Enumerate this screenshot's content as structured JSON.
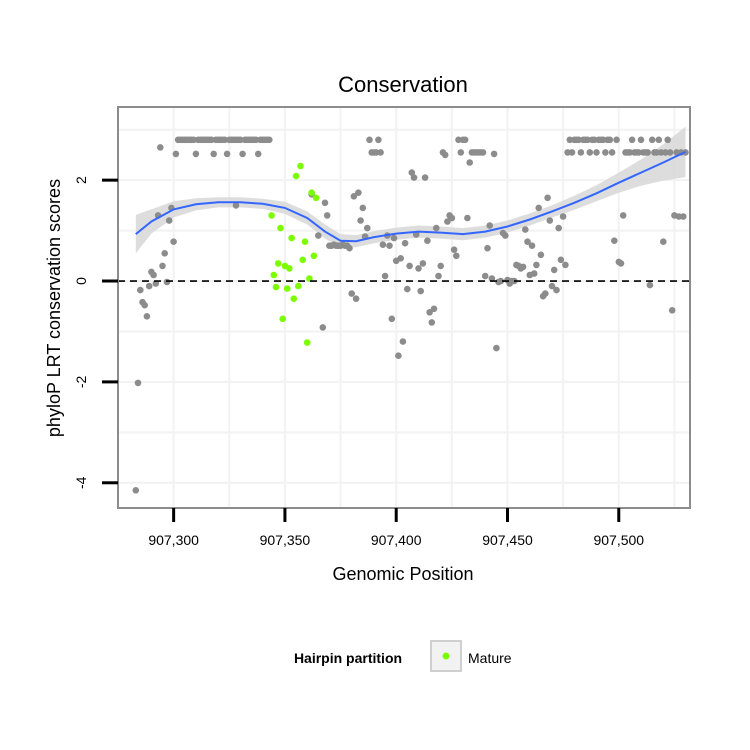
{
  "chart_data": {
    "type": "scatter",
    "title": "Conservation",
    "xlabel": "Genomic Position",
    "ylabel": "phyloP LRT conservation scores",
    "xlim": [
      907275,
      907532
    ],
    "ylim": [
      -4.5,
      3.45
    ],
    "x_ticks": [
      907300,
      907350,
      907400,
      907450,
      907500
    ],
    "x_tick_labels": [
      "907,300",
      "907,350",
      "907,400",
      "907,450",
      "907,500"
    ],
    "y_ticks": [
      -4,
      -2,
      0,
      2
    ],
    "y_tick_labels": [
      "-4",
      "-2",
      "0",
      "2"
    ],
    "reference_line": {
      "y": 0,
      "style": "dashed"
    },
    "grid": true,
    "legend": {
      "position": "bottom",
      "title": "Hairpin partition",
      "entries": [
        "Mature"
      ]
    },
    "colors": {
      "other": "#8c8c8c",
      "mature": "#7cfc00",
      "smooth": "#3366ff",
      "ribbon": "#d9d9d9",
      "panel_border": "#8c8c8c",
      "grid": "#f2f2f2"
    },
    "series": [
      {
        "name": "",
        "color": "#8c8c8c",
        "points": [
          [
            907283,
            -4.15
          ],
          [
            907284,
            -2.02
          ],
          [
            907285,
            -0.18
          ],
          [
            907286,
            -0.42
          ],
          [
            907287,
            -0.48
          ],
          [
            907288,
            -0.7
          ],
          [
            907289,
            -0.1
          ],
          [
            907290,
            0.18
          ],
          [
            907291,
            0.12
          ],
          [
            907292,
            -0.05
          ],
          [
            907293,
            1.3
          ],
          [
            907294,
            2.65
          ],
          [
            907295,
            0.3
          ],
          [
            907296,
            0.55
          ],
          [
            907297,
            -0.02
          ],
          [
            907298,
            1.2
          ],
          [
            907299,
            1.45
          ],
          [
            907300,
            0.78
          ],
          [
            907301,
            2.52
          ],
          [
            907302,
            2.8
          ],
          [
            907303,
            2.8
          ],
          [
            907304,
            2.8
          ],
          [
            907305,
            2.8
          ],
          [
            907306,
            2.8
          ],
          [
            907307,
            2.8
          ],
          [
            907308,
            2.8
          ],
          [
            907309,
            2.8
          ],
          [
            907310,
            2.52
          ],
          [
            907311,
            2.8
          ],
          [
            907312,
            2.8
          ],
          [
            907313,
            2.8
          ],
          [
            907314,
            2.8
          ],
          [
            907315,
            2.8
          ],
          [
            907316,
            2.8
          ],
          [
            907317,
            2.8
          ],
          [
            907318,
            2.52
          ],
          [
            907319,
            2.8
          ],
          [
            907320,
            2.8
          ],
          [
            907321,
            2.8
          ],
          [
            907322,
            2.8
          ],
          [
            907323,
            2.8
          ],
          [
            907324,
            2.52
          ],
          [
            907325,
            2.8
          ],
          [
            907326,
            2.8
          ],
          [
            907327,
            2.8
          ],
          [
            907328,
            2.8
          ],
          [
            907329,
            2.8
          ],
          [
            907330,
            2.8
          ],
          [
            907331,
            2.52
          ],
          [
            907332,
            2.8
          ],
          [
            907333,
            2.8
          ],
          [
            907334,
            2.8
          ],
          [
            907335,
            2.8
          ],
          [
            907336,
            2.8
          ],
          [
            907337,
            2.8
          ],
          [
            907338,
            2.52
          ],
          [
            907339,
            2.8
          ],
          [
            907340,
            2.8
          ],
          [
            907341,
            2.8
          ],
          [
            907342,
            2.8
          ],
          [
            907343,
            2.8
          ],
          [
            907328,
            1.5
          ],
          [
            907362,
            1.72
          ],
          [
            907365,
            0.9
          ],
          [
            907367,
            -0.92
          ],
          [
            907368,
            1.55
          ],
          [
            907369,
            1.3
          ],
          [
            907370,
            0.7
          ],
          [
            907371,
            0.7
          ],
          [
            907372,
            0.72
          ],
          [
            907373,
            0.7
          ],
          [
            907374,
            0.7
          ],
          [
            907375,
            0.7
          ],
          [
            907376,
            0.72
          ],
          [
            907377,
            0.7
          ],
          [
            907378,
            0.7
          ],
          [
            907379,
            0.65
          ],
          [
            907380,
            -0.25
          ],
          [
            907381,
            1.68
          ],
          [
            907382,
            -0.35
          ],
          [
            907383,
            1.75
          ],
          [
            907384,
            1.2
          ],
          [
            907385,
            1.45
          ],
          [
            907386,
            0.88
          ],
          [
            907387,
            1.05
          ],
          [
            907388,
            2.8
          ],
          [
            907389,
            2.55
          ],
          [
            907390,
            2.55
          ],
          [
            907391,
            2.55
          ],
          [
            907392,
            2.8
          ],
          [
            907393,
            2.55
          ],
          [
            907394,
            0.72
          ],
          [
            907395,
            0.1
          ],
          [
            907396,
            0.9
          ],
          [
            907397,
            0.7
          ],
          [
            907398,
            -0.75
          ],
          [
            907399,
            0.85
          ],
          [
            907400,
            0.4
          ],
          [
            907401,
            -1.48
          ],
          [
            907402,
            0.45
          ],
          [
            907403,
            -1.2
          ],
          [
            907404,
            0.75
          ],
          [
            907405,
            -0.16
          ],
          [
            907406,
            0.3
          ],
          [
            907407,
            2.15
          ],
          [
            907408,
            2.05
          ],
          [
            907409,
            0.92
          ],
          [
            907410,
            0.25
          ],
          [
            907411,
            -0.2
          ],
          [
            907412,
            0.35
          ],
          [
            907413,
            2.05
          ],
          [
            907414,
            0.8
          ],
          [
            907415,
            -0.62
          ],
          [
            907416,
            -0.82
          ],
          [
            907417,
            -0.55
          ],
          [
            907418,
            1.05
          ],
          [
            907419,
            0.1
          ],
          [
            907420,
            0.3
          ],
          [
            907421,
            2.55
          ],
          [
            907422,
            2.5
          ],
          [
            907423,
            1.18
          ],
          [
            907424,
            1.3
          ],
          [
            907425,
            1.25
          ],
          [
            907426,
            0.62
          ],
          [
            907427,
            0.5
          ],
          [
            907428,
            2.8
          ],
          [
            907429,
            2.55
          ],
          [
            907430,
            2.8
          ],
          [
            907431,
            2.8
          ],
          [
            907432,
            1.25
          ],
          [
            907433,
            2.35
          ],
          [
            907434,
            2.55
          ],
          [
            907435,
            2.55
          ],
          [
            907436,
            2.55
          ],
          [
            907437,
            2.55
          ],
          [
            907438,
            2.55
          ],
          [
            907439,
            2.55
          ],
          [
            907440,
            0.1
          ],
          [
            907441,
            0.65
          ],
          [
            907442,
            1.1
          ],
          [
            907443,
            0.05
          ],
          [
            907444,
            2.52
          ],
          [
            907445,
            -1.33
          ],
          [
            907446,
            -0.02
          ],
          [
            907447,
            0.0
          ],
          [
            907448,
            0.95
          ],
          [
            907449,
            0.9
          ],
          [
            907450,
            0.02
          ],
          [
            907451,
            -0.05
          ],
          [
            907452,
            0.0
          ],
          [
            907453,
            0.0
          ],
          [
            907454,
            0.32
          ],
          [
            907455,
            0.3
          ],
          [
            907456,
            0.25
          ],
          [
            907457,
            0.28
          ],
          [
            907458,
            1.02
          ],
          [
            907459,
            0.78
          ],
          [
            907460,
            0.12
          ],
          [
            907461,
            0.7
          ],
          [
            907462,
            0.15
          ],
          [
            907463,
            0.32
          ],
          [
            907464,
            1.45
          ],
          [
            907465,
            0.52
          ],
          [
            907466,
            -0.3
          ],
          [
            907467,
            -0.25
          ],
          [
            907468,
            1.65
          ],
          [
            907469,
            1.2
          ],
          [
            907470,
            -0.1
          ],
          [
            907471,
            0.22
          ],
          [
            907472,
            -0.18
          ],
          [
            907473,
            1.05
          ],
          [
            907474,
            0.42
          ],
          [
            907475,
            1.28
          ],
          [
            907476,
            0.32
          ],
          [
            907477,
            2.55
          ],
          [
            907478,
            2.8
          ],
          [
            907479,
            2.55
          ],
          [
            907480,
            2.8
          ],
          [
            907481,
            2.8
          ],
          [
            907482,
            2.8
          ],
          [
            907483,
            2.55
          ],
          [
            907484,
            2.8
          ],
          [
            907485,
            2.8
          ],
          [
            907486,
            2.8
          ],
          [
            907487,
            2.55
          ],
          [
            907488,
            2.8
          ],
          [
            907489,
            2.8
          ],
          [
            907490,
            2.55
          ],
          [
            907491,
            2.8
          ],
          [
            907492,
            2.8
          ],
          [
            907493,
            2.8
          ],
          [
            907494,
            2.55
          ],
          [
            907495,
            2.8
          ],
          [
            907496,
            2.8
          ],
          [
            907497,
            2.55
          ],
          [
            907498,
            0.8
          ],
          [
            907499,
            2.8
          ],
          [
            907500,
            0.38
          ],
          [
            907501,
            0.35
          ],
          [
            907502,
            1.3
          ],
          [
            907503,
            2.55
          ],
          [
            907504,
            2.55
          ],
          [
            907505,
            2.55
          ],
          [
            907506,
            2.8
          ],
          [
            907507,
            2.55
          ],
          [
            907508,
            2.55
          ],
          [
            907509,
            2.55
          ],
          [
            907510,
            2.8
          ],
          [
            907511,
            2.55
          ],
          [
            907512,
            2.55
          ],
          [
            907513,
            2.55
          ],
          [
            907514,
            -0.08
          ],
          [
            907515,
            2.8
          ],
          [
            907516,
            2.55
          ],
          [
            907517,
            2.55
          ],
          [
            907518,
            2.8
          ],
          [
            907519,
            2.55
          ],
          [
            907520,
            0.78
          ],
          [
            907521,
            2.55
          ],
          [
            907522,
            2.8
          ],
          [
            907523,
            2.55
          ],
          [
            907524,
            -0.58
          ],
          [
            907525,
            1.3
          ],
          [
            907526,
            2.55
          ],
          [
            907527,
            1.28
          ],
          [
            907528,
            2.55
          ],
          [
            907529,
            1.28
          ],
          [
            907530,
            2.55
          ]
        ]
      },
      {
        "name": "Mature",
        "color": "#7cfc00",
        "points": [
          [
            907344,
            1.3
          ],
          [
            907345,
            0.12
          ],
          [
            907346,
            -0.12
          ],
          [
            907347,
            0.35
          ],
          [
            907348,
            1.05
          ],
          [
            907349,
            -0.75
          ],
          [
            907350,
            0.3
          ],
          [
            907351,
            -0.15
          ],
          [
            907352,
            0.25
          ],
          [
            907353,
            0.85
          ],
          [
            907354,
            -0.35
          ],
          [
            907355,
            2.08
          ],
          [
            907356,
            -0.1
          ],
          [
            907357,
            2.28
          ],
          [
            907358,
            0.42
          ],
          [
            907359,
            0.78
          ],
          [
            907360,
            -1.22
          ],
          [
            907361,
            0.05
          ],
          [
            907362,
            1.75
          ],
          [
            907363,
            0.5
          ],
          [
            907364,
            1.65
          ]
        ]
      }
    ],
    "smooth": {
      "name": "",
      "color": "#3366ff",
      "points": [
        [
          907283,
          0.93
        ],
        [
          907290,
          1.18
        ],
        [
          907300,
          1.42
        ],
        [
          907310,
          1.52
        ],
        [
          907320,
          1.56
        ],
        [
          907330,
          1.56
        ],
        [
          907340,
          1.53
        ],
        [
          907350,
          1.45
        ],
        [
          907360,
          1.25
        ],
        [
          907368,
          0.98
        ],
        [
          907375,
          0.8
        ],
        [
          907382,
          0.79
        ],
        [
          907390,
          0.87
        ],
        [
          907400,
          0.94
        ],
        [
          907410,
          0.98
        ],
        [
          907420,
          0.96
        ],
        [
          907430,
          0.93
        ],
        [
          907440,
          0.98
        ],
        [
          907450,
          1.08
        ],
        [
          907460,
          1.22
        ],
        [
          907470,
          1.38
        ],
        [
          907480,
          1.55
        ],
        [
          907490,
          1.74
        ],
        [
          907500,
          1.95
        ],
        [
          907510,
          2.15
        ],
        [
          907520,
          2.35
        ],
        [
          907530,
          2.56
        ]
      ],
      "ribbon_halfwidth": [
        0.38,
        0.24,
        0.16,
        0.12,
        0.1,
        0.1,
        0.1,
        0.12,
        0.13,
        0.14,
        0.13,
        0.12,
        0.12,
        0.12,
        0.12,
        0.12,
        0.12,
        0.12,
        0.12,
        0.12,
        0.12,
        0.14,
        0.16,
        0.2,
        0.26,
        0.36,
        0.5
      ]
    }
  }
}
